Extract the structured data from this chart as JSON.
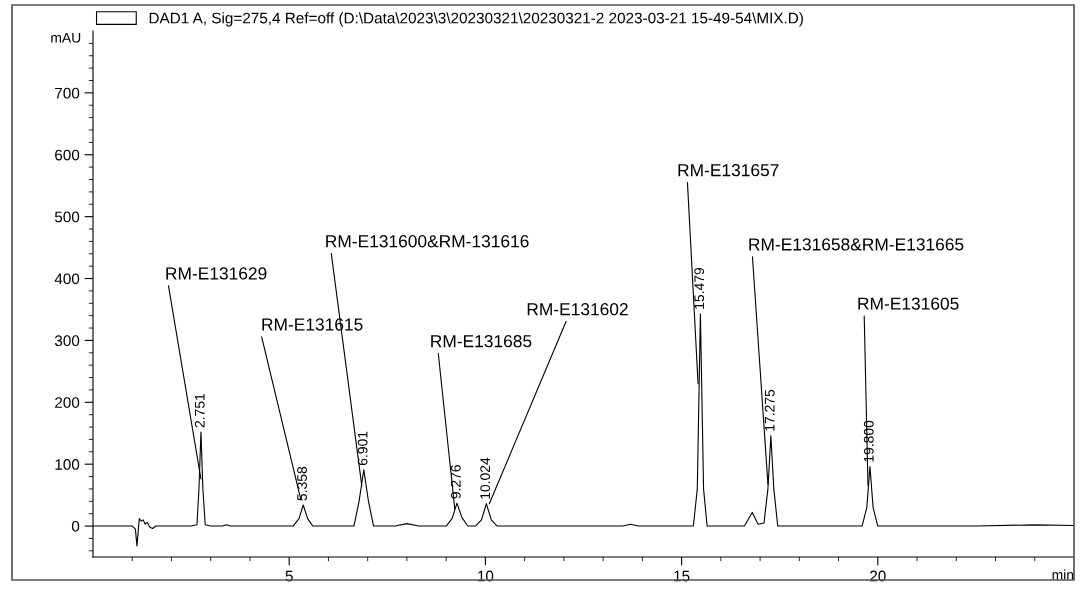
{
  "chart_data": {
    "type": "line",
    "xlabel": "min",
    "ylabel": "mAU",
    "xlim": [
      0,
      25
    ],
    "ylim": [
      -50,
      800
    ],
    "xticks": [
      {
        "value": 1,
        "label": null
      },
      {
        "value": 2,
        "label": null
      },
      {
        "value": 3,
        "label": null
      },
      {
        "value": 4,
        "label": null
      },
      5,
      {
        "value": 6,
        "label": null
      },
      {
        "value": 7,
        "label": null
      },
      {
        "value": 8,
        "label": null
      },
      {
        "value": 9,
        "label": null
      },
      10,
      {
        "value": 11,
        "label": null
      },
      {
        "value": 12,
        "label": null
      },
      {
        "value": 13,
        "label": null
      },
      {
        "value": 14,
        "label": null
      },
      15,
      {
        "value": 16,
        "label": null
      },
      {
        "value": 17,
        "label": null
      },
      {
        "value": 18,
        "label": null
      },
      {
        "value": 19,
        "label": null
      },
      20,
      {
        "value": 21,
        "label": null
      },
      {
        "value": 22,
        "label": null
      },
      {
        "value": 23,
        "label": null
      },
      {
        "value": 24,
        "label": null
      }
    ],
    "yticks": [
      {
        "value": -40,
        "label": null
      },
      {
        "value": -20,
        "label": null
      },
      0,
      {
        "value": 20,
        "label": null
      },
      {
        "value": 40,
        "label": null
      },
      {
        "value": 60,
        "label": null
      },
      {
        "value": 80,
        "label": null
      },
      100,
      {
        "value": 120,
        "label": null
      },
      {
        "value": 140,
        "label": null
      },
      {
        "value": 160,
        "label": null
      },
      {
        "value": 180,
        "label": null
      },
      200,
      {
        "value": 220,
        "label": null
      },
      {
        "value": 240,
        "label": null
      },
      {
        "value": 260,
        "label": null
      },
      {
        "value": 280,
        "label": null
      },
      300,
      {
        "value": 320,
        "label": null
      },
      {
        "value": 340,
        "label": null
      },
      {
        "value": 360,
        "label": null
      },
      {
        "value": 380,
        "label": null
      },
      400,
      {
        "value": 420,
        "label": null
      },
      {
        "value": 440,
        "label": null
      },
      {
        "value": 460,
        "label": null
      },
      {
        "value": 480,
        "label": null
      },
      500,
      {
        "value": 520,
        "label": null
      },
      {
        "value": 540,
        "label": null
      },
      {
        "value": 560,
        "label": null
      },
      {
        "value": 580,
        "label": null
      },
      600,
      {
        "value": 620,
        "label": null
      },
      {
        "value": 640,
        "label": null
      },
      {
        "value": 660,
        "label": null
      },
      {
        "value": 680,
        "label": null
      },
      700,
      {
        "value": 720,
        "label": null
      },
      {
        "value": 740,
        "label": null
      },
      {
        "value": 760,
        "label": null
      },
      {
        "value": 780,
        "label": null
      }
    ],
    "grid": false,
    "legend": "top left",
    "marker": "none",
    "line_style": "solid",
    "series": [
      {
        "name": "DAD1 A, Sig=275,4 Ref=off (D:\\Data\\2023\\3\\20230321\\20230321-2 2023-03-21 15-49-54\\MIX.D)",
        "color": "#000000",
        "x": [
          0.0,
          1.0,
          1.08,
          1.12,
          1.18,
          1.23,
          1.28,
          1.33,
          1.38,
          1.45,
          1.52,
          1.6,
          2.5,
          2.65,
          2.7,
          2.751,
          2.8,
          2.86,
          3.0,
          3.3,
          3.4,
          3.5,
          5.1,
          5.25,
          5.358,
          5.47,
          5.6,
          6.65,
          6.78,
          6.901,
          7.02,
          7.15,
          7.7,
          8.0,
          8.3,
          9.0,
          9.15,
          9.276,
          9.4,
          9.55,
          9.75,
          9.9,
          10.024,
          10.15,
          10.3,
          13.5,
          13.7,
          13.9,
          15.3,
          15.4,
          15.479,
          15.56,
          15.65,
          16.6,
          16.8,
          16.95,
          17.1,
          17.2,
          17.275,
          17.35,
          17.45,
          19.6,
          19.72,
          19.8,
          19.88,
          20.0,
          22.5,
          24.0,
          25.0
        ],
        "values": [
          0,
          0,
          -5,
          -32,
          12,
          8,
          10,
          3,
          6,
          -2,
          -4,
          0,
          0,
          2,
          60,
          152,
          60,
          2,
          0,
          0,
          2,
          0,
          0,
          12,
          34,
          12,
          0,
          0,
          40,
          91,
          40,
          0,
          0,
          4,
          0,
          0,
          12,
          37,
          14,
          0,
          0,
          10,
          36,
          10,
          0,
          0,
          3,
          0,
          0,
          60,
          343,
          60,
          0,
          0,
          22,
          3,
          5,
          60,
          146,
          60,
          0,
          0,
          30,
          96,
          30,
          0,
          0,
          2,
          1
        ]
      }
    ],
    "annotations": [
      {
        "text": "RM-E131629",
        "x": 2.751,
        "y": 76
      },
      {
        "text": "RM-E131615",
        "x": 5.3,
        "y": 42
      },
      {
        "text": "RM-E131600&RM-131616",
        "x": 6.85,
        "y": 65
      },
      {
        "text": "RM-E131685",
        "x": 9.22,
        "y": 28
      },
      {
        "text": "RM-E131602",
        "x": 10.1,
        "y": 36
      },
      {
        "text": "RM-E131657",
        "x": 15.42,
        "y": 230
      },
      {
        "text": "RM-E131658&RM-E131665",
        "x": 17.2,
        "y": 68
      },
      {
        "text": "RM-E131605",
        "x": 19.75,
        "y": 66
      },
      {
        "text": "2.751",
        "x": 2.751,
        "y": 152
      },
      {
        "text": "5.358",
        "x": 5.358,
        "y": 34
      },
      {
        "text": "6.901",
        "x": 6.901,
        "y": 91
      },
      {
        "text": "9.276",
        "x": 9.276,
        "y": 37
      },
      {
        "text": "10.024",
        "x": 10.024,
        "y": 36
      },
      {
        "text": "15.479",
        "x": 15.479,
        "y": 343
      },
      {
        "text": "17.275",
        "x": 17.275,
        "y": 146
      },
      {
        "text": "19.800",
        "x": 19.8,
        "y": 96
      }
    ]
  }
}
